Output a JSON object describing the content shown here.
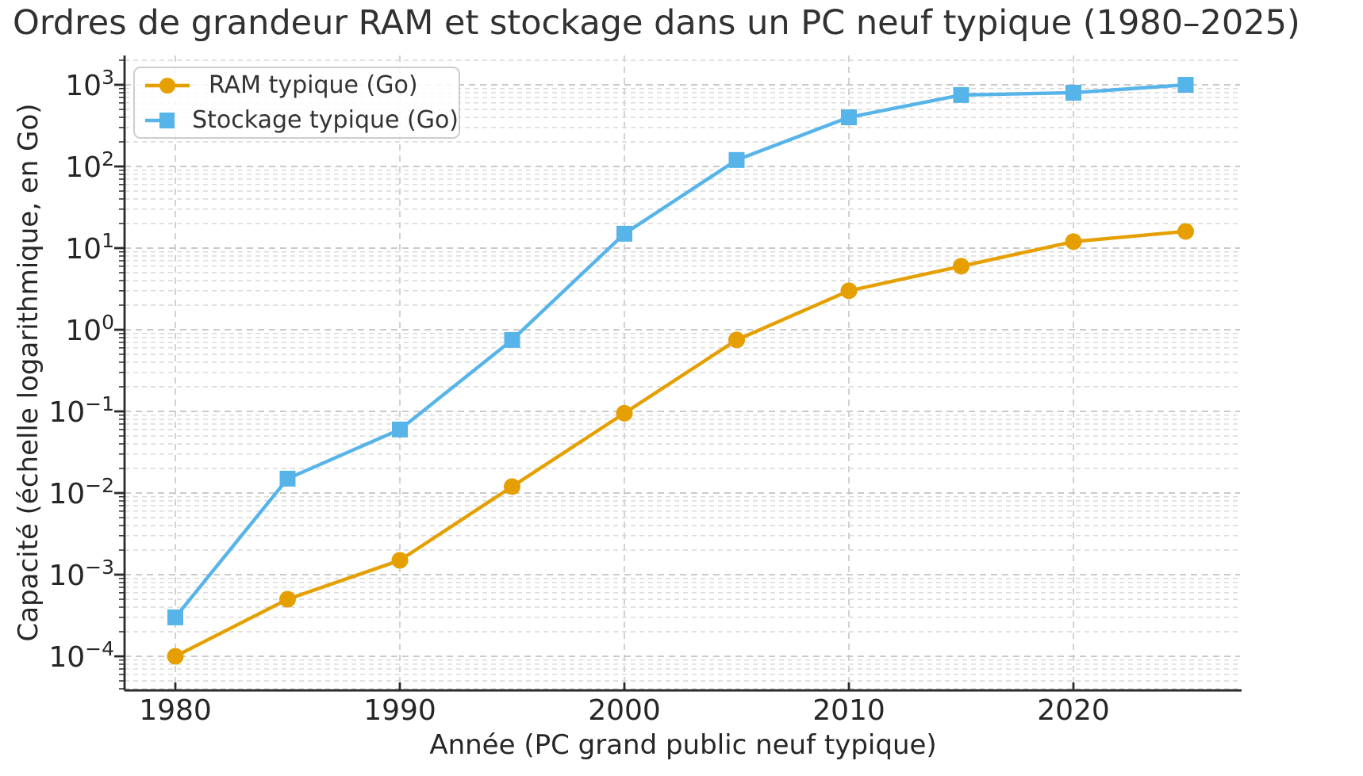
{
  "chart_data": {
    "type": "line",
    "title": "Ordres de grandeur RAM et stockage dans un PC neuf typique (1980–2025)",
    "xlabel": "Année (PC grand public neuf typique)",
    "ylabel": "Capacité (échelle logarithmique, en Go)",
    "yscale": "log",
    "x": [
      1980,
      1985,
      1990,
      1995,
      2000,
      2005,
      2010,
      2015,
      2020,
      2025
    ],
    "series": [
      {
        "name": "RAM typique (Go)",
        "color": "#E69F00",
        "marker": "circle",
        "values": [
          0.0001,
          0.0005,
          0.0015,
          0.012,
          0.095,
          0.75,
          3,
          6,
          12,
          16
        ]
      },
      {
        "name": "Stockage typique (Go)",
        "color": "#56B4E9",
        "marker": "square",
        "values": [
          0.0003,
          0.015,
          0.06,
          0.75,
          15,
          120,
          400,
          750,
          800,
          1000
        ]
      }
    ],
    "x_ticks": [
      1980,
      1990,
      2000,
      2010,
      2020
    ],
    "x_tick_labels": [
      "1980",
      "1990",
      "2000",
      "2010",
      "2020"
    ],
    "y_tick_exponents": [
      3,
      2,
      1,
      0,
      -1,
      -2,
      -3,
      -4
    ],
    "y_tick_labels_display": [
      "10³",
      "10²",
      "10¹",
      "10⁰",
      "10⁻¹",
      "10⁻²",
      "10⁻³",
      "10⁻⁴"
    ],
    "xlim": [
      1977.7,
      2027.5
    ],
    "ylim": [
      3.8e-05,
      2300
    ],
    "grid": {
      "horizontal": "dashed",
      "vertical": "dashed",
      "minor": true
    },
    "legend_position": "upper left"
  },
  "colors": {
    "background": "#ffffff",
    "title_text": "#313131",
    "axis_text": "#262626",
    "legend_text": "#333333",
    "spine": "#2a2a2a",
    "grid_major": "#c3c3c3",
    "grid_minor": "#d7d7d7",
    "grid_vertical": "#c7c7c7",
    "legend_border": "#cdcdcd",
    "series_ram": "#E69F00",
    "series_stockage": "#56B4E9"
  }
}
